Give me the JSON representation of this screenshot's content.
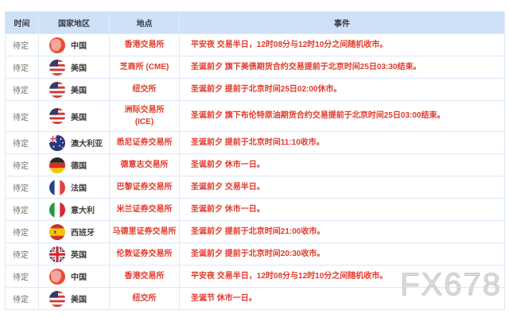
{
  "watermark": {
    "text": "FX678"
  },
  "colors": {
    "header_bg": "#cee1f6",
    "row_border": "#dce8f8",
    "event_text": "#e23a2c",
    "time_text": "#6f6f6f",
    "country_text": "#3c3c3c",
    "watermark_text": "#dcdbd9"
  },
  "table": {
    "headers": {
      "time": "时间",
      "country": "国家地区",
      "location": "地点",
      "event": "事件"
    },
    "rows": [
      {
        "time": "待定",
        "country": "中国",
        "flag": "cn",
        "location": "香港交易所",
        "event": "平安夜 交易半日，12时08分与12时10分之间随机收市。"
      },
      {
        "time": "待定",
        "country": "美国",
        "flag": "us",
        "location": "芝商所 (CME)",
        "event": "圣诞前夕 旗下美债期货合约交易提前于北京时间25日03:30结束。"
      },
      {
        "time": "待定",
        "country": "美国",
        "flag": "us",
        "location": "纽交所",
        "event": "圣诞前夕 提前于北京时间25日02:00休市。"
      },
      {
        "time": "待定",
        "country": "美国",
        "flag": "us",
        "location": "洲际交易所\n(ICE)",
        "event": "圣诞前夕 旗下布伦特原油期货合约交易提前于北京时间25日03:00结束。"
      },
      {
        "time": "待定",
        "country": "澳大利亚",
        "flag": "au",
        "location": "悉尼证券交易所",
        "event": "圣诞前夕 提前于北京时间11:10收市。"
      },
      {
        "time": "待定",
        "country": "德国",
        "flag": "de",
        "location": "德意志交易所",
        "event": "圣诞前夕 休市一日。"
      },
      {
        "time": "待定",
        "country": "法国",
        "flag": "fr",
        "location": "巴黎证券交易所",
        "event": "圣诞前夕 交易半日。"
      },
      {
        "time": "待定",
        "country": "意大利",
        "flag": "it",
        "location": "米兰证券交易所",
        "event": "圣诞前夕 休市一日。"
      },
      {
        "time": "待定",
        "country": "西班牙",
        "flag": "es",
        "location": "马德里证券交易所",
        "event": "圣诞前夕 提前于北京时间21:00收市。"
      },
      {
        "time": "待定",
        "country": "英国",
        "flag": "gb",
        "location": "伦敦证券交易所",
        "event": "圣诞前夕 提前于北京时间20:30收市。"
      },
      {
        "time": "待定",
        "country": "中国",
        "flag": "cn",
        "location": "香港交易所",
        "event": "平安夜 交易半日，12时08分与12时10分之间随机收市。"
      },
      {
        "time": "待定",
        "country": "美国",
        "flag": "us",
        "location": "纽交所",
        "event": "圣诞节 休市一日。"
      }
    ]
  }
}
